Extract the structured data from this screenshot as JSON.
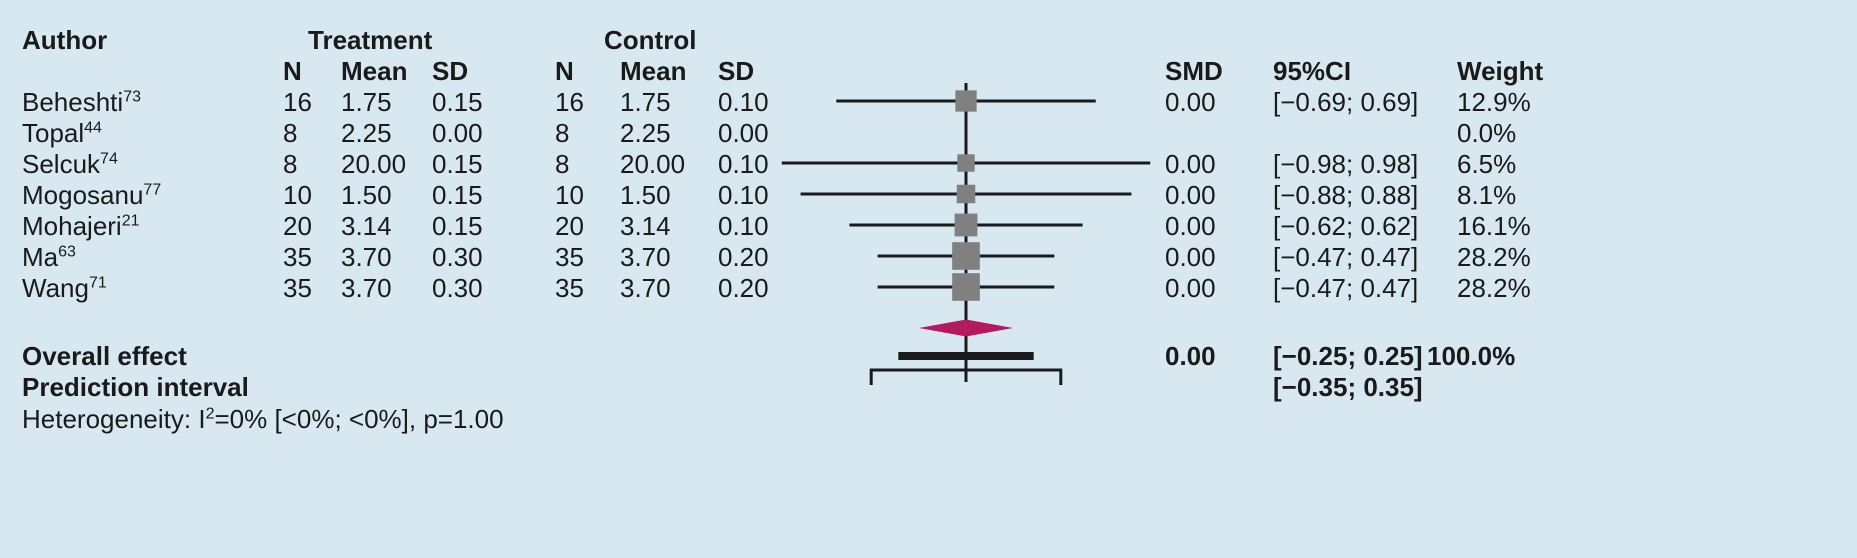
{
  "headers": {
    "author": "Author",
    "treatment": "Treatment",
    "control": "Control",
    "n": "N",
    "mean": "Mean",
    "sd": "SD",
    "smd": "SMD",
    "ci": "95%CI",
    "weight": "Weight"
  },
  "studies": [
    {
      "author": "Beheshti",
      "ref": "73",
      "tn": "16",
      "tmean": "1.75",
      "tsd": "0.15",
      "cn": "16",
      "cmean": "1.75",
      "csd": "0.10",
      "smd": "0.00",
      "ci": "[−0.69; 0.69]",
      "weight": "12.9%"
    },
    {
      "author": "Topal",
      "ref": "44",
      "tn": "8",
      "tmean": "2.25",
      "tsd": "0.00",
      "cn": "8",
      "cmean": "2.25",
      "csd": "0.00",
      "smd": "",
      "ci": "",
      "weight": "0.0%"
    },
    {
      "author": "Selcuk",
      "ref": "74",
      "tn": "8",
      "tmean": "20.00",
      "tsd": "0.15",
      "cn": "8",
      "cmean": "20.00",
      "csd": "0.10",
      "smd": "0.00",
      "ci": "[−0.98; 0.98]",
      "weight": "6.5%"
    },
    {
      "author": "Mogosanu",
      "ref": "77",
      "tn": "10",
      "tmean": "1.50",
      "tsd": "0.15",
      "cn": "10",
      "cmean": "1.50",
      "csd": "0.10",
      "smd": "0.00",
      "ci": "[−0.88; 0.88]",
      "weight": "8.1%"
    },
    {
      "author": "Mohajeri",
      "ref": "21",
      "tn": "20",
      "tmean": "3.14",
      "tsd": "0.15",
      "cn": "20",
      "cmean": "3.14",
      "csd": "0.10",
      "smd": "0.00",
      "ci": "[−0.62; 0.62]",
      "weight": "16.1%"
    },
    {
      "author": "Ma",
      "ref": "63",
      "tn": "35",
      "tmean": "3.70",
      "tsd": "0.30",
      "cn": "35",
      "cmean": "3.70",
      "csd": "0.20",
      "smd": "0.00",
      "ci": "[−0.47; 0.47]",
      "weight": "28.2%"
    },
    {
      "author": "Wang",
      "ref": "71",
      "tn": "35",
      "tmean": "3.70",
      "tsd": "0.30",
      "cn": "35",
      "cmean": "3.70",
      "csd": "0.20",
      "smd": "0.00",
      "ci": "[−0.47; 0.47]",
      "weight": "28.2%"
    }
  ],
  "overall": {
    "label": "Overall effect",
    "smd": "0.00",
    "ci": "[−0.25; 0.25]",
    "weight": "100.0%"
  },
  "prediction": {
    "label": "Prediction interval",
    "ci": "[−0.35; 0.35]"
  },
  "heterogeneity": {
    "prefix": "Heterogeneity: I",
    "sup": "2",
    "suffix": "=0% [<0%; <0%], p=1.00"
  },
  "chart_data": {
    "type": "forest",
    "null_line": 0,
    "studies": [
      {
        "name": "Beheshti",
        "smd": 0.0,
        "lower": -0.69,
        "upper": 0.69,
        "weight": 12.9
      },
      {
        "name": "Topal",
        "smd": null,
        "lower": null,
        "upper": null,
        "weight": 0.0
      },
      {
        "name": "Selcuk",
        "smd": 0.0,
        "lower": -0.98,
        "upper": 0.98,
        "weight": 6.5
      },
      {
        "name": "Mogosanu",
        "smd": 0.0,
        "lower": -0.88,
        "upper": 0.88,
        "weight": 8.1
      },
      {
        "name": "Mohajeri",
        "smd": 0.0,
        "lower": -0.62,
        "upper": 0.62,
        "weight": 16.1
      },
      {
        "name": "Ma",
        "smd": 0.0,
        "lower": -0.47,
        "upper": 0.47,
        "weight": 28.2
      },
      {
        "name": "Wang",
        "smd": 0.0,
        "lower": -0.47,
        "upper": 0.47,
        "weight": 28.2
      }
    ],
    "overall": {
      "smd": 0.0,
      "lower": -0.25,
      "upper": 0.25
    },
    "prediction_interval": {
      "lower": -0.35,
      "upper": 0.35
    },
    "colors": {
      "marker": "#808080",
      "diamond": "#b5195f",
      "line": "#1a1a1a",
      "background": "#d7e8f1"
    }
  }
}
